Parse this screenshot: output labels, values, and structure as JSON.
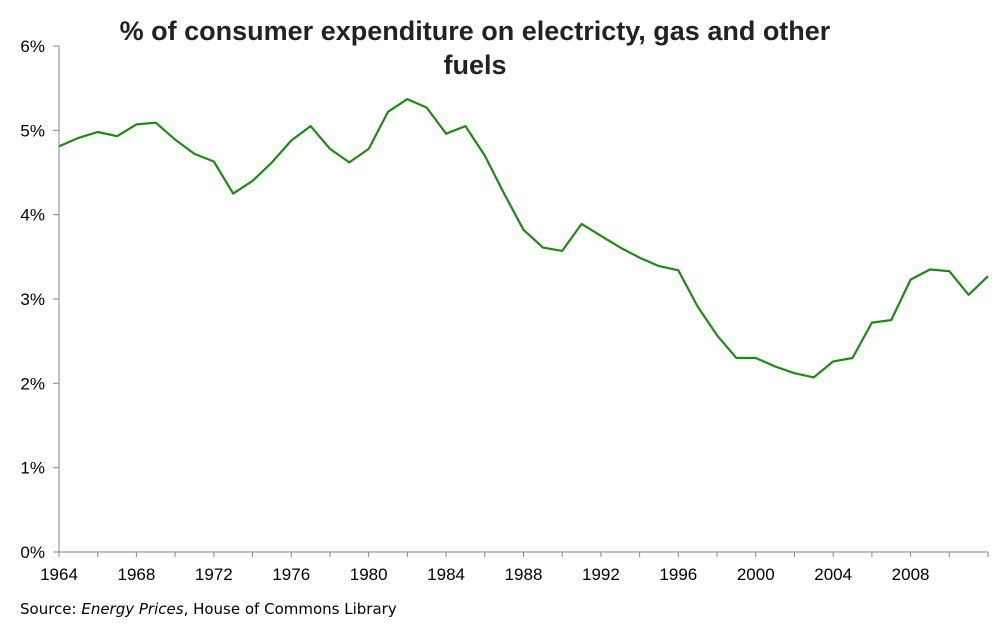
{
  "chart_data": {
    "type": "line",
    "title": "% of consumer expenditure on electricty, gas and other fuels",
    "xlabel": "",
    "ylabel": "",
    "xlim": [
      1964,
      2012
    ],
    "ylim": [
      0,
      6
    ],
    "x_ticks": [
      "1964",
      "1968",
      "1972",
      "1976",
      "1980",
      "1984",
      "1988",
      "1992",
      "1996",
      "2000",
      "2004",
      "2008"
    ],
    "y_ticks": [
      "0%",
      "1%",
      "2%",
      "3%",
      "4%",
      "5%",
      "6%"
    ],
    "grid": false,
    "legend": "none",
    "series": [
      {
        "color": "#1e8a14",
        "x": [
          1964,
          1965,
          1966,
          1967,
          1968,
          1969,
          1970,
          1971,
          1972,
          1973,
          1974,
          1975,
          1976,
          1977,
          1978,
          1979,
          1980,
          1981,
          1982,
          1983,
          1984,
          1985,
          1986,
          1987,
          1988,
          1989,
          1990,
          1991,
          1992,
          1993,
          1994,
          1995,
          1996,
          1997,
          1998,
          1999,
          2000,
          2001,
          2002,
          2003,
          2004,
          2005,
          2006,
          2007,
          2008,
          2009,
          2010,
          2011,
          2012
        ],
        "values": [
          4.81,
          4.91,
          4.98,
          4.93,
          5.07,
          5.09,
          4.89,
          4.72,
          4.63,
          4.25,
          4.4,
          4.62,
          4.88,
          5.05,
          4.78,
          4.62,
          4.78,
          5.22,
          5.37,
          5.27,
          4.96,
          5.05,
          4.7,
          4.25,
          3.82,
          3.61,
          3.57,
          3.89,
          3.75,
          3.61,
          3.49,
          3.39,
          3.34,
          2.91,
          2.57,
          2.3,
          2.3,
          2.2,
          2.12,
          2.07,
          2.26,
          2.3,
          2.72,
          2.75,
          3.23,
          3.35,
          3.33,
          3.05,
          3.27
        ]
      }
    ]
  },
  "source": {
    "prefix": "Source: ",
    "italic": "Energy Prices",
    "suffix": ", House of Commons Library"
  }
}
